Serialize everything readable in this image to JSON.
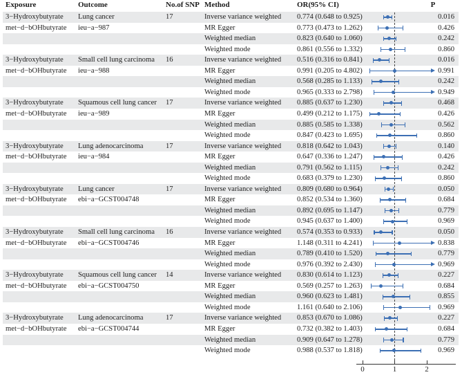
{
  "table": {
    "columns": [
      "Exposure",
      "Outcome",
      "No.of SNP",
      "Method",
      "OR(95% CI)",
      "P"
    ]
  },
  "chart_data": {
    "type": "forest",
    "x_axis": {
      "ticks": [
        "0",
        "1",
        "2"
      ],
      "range": [
        0,
        2.15
      ],
      "reference_line": 1,
      "clip_value": 2.13
    },
    "colors": {
      "marker_blue": "#3c6fb4",
      "row_shade": "#e8e9ea",
      "axis": "#333333",
      "text": "#1c1c1c"
    },
    "groups": [
      {
        "exposure": [
          "3−Hydroxybutyrate",
          "met−d−bOHbutyrate"
        ],
        "outcome": [
          "Lung cancer",
          "ieu−a−987"
        ],
        "snp": "17",
        "rows": [
          {
            "method": "Inverse variance weighted",
            "or_ci": "0.774 (0.648 to 0.925)",
            "or": 0.774,
            "lo": 0.648,
            "hi": 0.925,
            "p": "0.016"
          },
          {
            "method": "MR Egger",
            "or_ci": "0.773 (0.473 to 1.262)",
            "or": 0.773,
            "lo": 0.473,
            "hi": 1.262,
            "p": "0.426"
          },
          {
            "method": "Weighted median",
            "or_ci": "0.823 (0.640 to 1.060)",
            "or": 0.823,
            "lo": 0.64,
            "hi": 1.06,
            "p": "0.242"
          },
          {
            "method": "Weighted mode",
            "or_ci": "0.861 (0.556 to 1.332)",
            "or": 0.861,
            "lo": 0.556,
            "hi": 1.332,
            "p": "0.860"
          }
        ]
      },
      {
        "exposure": [
          "3−Hydroxybutyrate",
          "met−d−bOHbutyrate"
        ],
        "outcome": [
          "Small cell lung carcinoma",
          "ieu−a−988"
        ],
        "snp": "16",
        "rows": [
          {
            "method": "Inverse variance weighted",
            "or_ci": "0.516 (0.316 to 0.841)",
            "or": 0.516,
            "lo": 0.316,
            "hi": 0.841,
            "p": "0.016"
          },
          {
            "method": "MR Egger",
            "or_ci": "0.991 (0.205 to 4.802)",
            "or": 0.991,
            "lo": 0.205,
            "hi": 4.802,
            "p": "0.991"
          },
          {
            "method": "Weighted median",
            "or_ci": "0.568 (0.285 to 1.133)",
            "or": 0.568,
            "lo": 0.285,
            "hi": 1.133,
            "p": "0.242"
          },
          {
            "method": "Weighted mode",
            "or_ci": "0.965 (0.333 to 2.798)",
            "or": 0.965,
            "lo": 0.333,
            "hi": 2.798,
            "p": "0.949"
          }
        ]
      },
      {
        "exposure": [
          "3−Hydroxybutyrate",
          "met−d−bOHbutyrate"
        ],
        "outcome": [
          "Squamous cell lung cancer",
          "ieu−a−989"
        ],
        "snp": "17",
        "rows": [
          {
            "method": "Inverse variance weighted",
            "or_ci": "0.885 (0.637 to 1.230)",
            "or": 0.885,
            "lo": 0.637,
            "hi": 1.23,
            "p": "0.468"
          },
          {
            "method": "MR Egger",
            "or_ci": "0.499 (0.212 to 1.175)",
            "or": 0.499,
            "lo": 0.212,
            "hi": 1.175,
            "p": "0.426"
          },
          {
            "method": "Weighted median",
            "or_ci": "0.885 (0.585 to 1.338)",
            "or": 0.885,
            "lo": 0.585,
            "hi": 1.338,
            "p": "0.562"
          },
          {
            "method": "Weighted mode",
            "or_ci": "0.847 (0.423 to 1.695)",
            "or": 0.847,
            "lo": 0.423,
            "hi": 1.695,
            "p": "0.860"
          }
        ]
      },
      {
        "exposure": [
          "3−Hydroxybutyrate",
          "met−d−bOHbutyrate"
        ],
        "outcome": [
          "Lung adenocarcinoma",
          "ieu−a−984"
        ],
        "snp": "17",
        "rows": [
          {
            "method": "Inverse variance weighted",
            "or_ci": "0.818 (0.642 to 1.043)",
            "or": 0.818,
            "lo": 0.642,
            "hi": 1.043,
            "p": "0.140"
          },
          {
            "method": "MR Egger",
            "or_ci": "0.647 (0.336 to 1.247)",
            "or": 0.647,
            "lo": 0.336,
            "hi": 1.247,
            "p": "0.426"
          },
          {
            "method": "Weighted median",
            "or_ci": "0.791 (0.562 to 1.115)",
            "or": 0.791,
            "lo": 0.562,
            "hi": 1.115,
            "p": "0.242"
          },
          {
            "method": "Weighted mode",
            "or_ci": "0.683 (0.379 to 1.230)",
            "or": 0.683,
            "lo": 0.379,
            "hi": 1.23,
            "p": "0.860"
          }
        ]
      },
      {
        "exposure": [
          "3−Hydroxybutyrate",
          "met−d−bOHbutyrate"
        ],
        "outcome": [
          "Lung cancer",
          "ebi−a−GCST004748"
        ],
        "snp": "17",
        "rows": [
          {
            "method": "Inverse variance weighted",
            "or_ci": "0.809 (0.680 to 0.964)",
            "or": 0.809,
            "lo": 0.68,
            "hi": 0.964,
            "p": "0.050"
          },
          {
            "method": "MR Egger",
            "or_ci": "0.852 (0.534 to 1.360)",
            "or": 0.852,
            "lo": 0.534,
            "hi": 1.36,
            "p": "0.684"
          },
          {
            "method": "Weighted median",
            "or_ci": "0.892 (0.695 to 1.147)",
            "or": 0.892,
            "lo": 0.695,
            "hi": 1.147,
            "p": "0.779"
          },
          {
            "method": "Weighted mode",
            "or_ci": "0.945 (0.637 to 1.400)",
            "or": 0.945,
            "lo": 0.637,
            "hi": 1.4,
            "p": "0.969"
          }
        ]
      },
      {
        "exposure": [
          "3−Hydroxybutyrate",
          "met−d−bOHbutyrate"
        ],
        "outcome": [
          "Small cell lung carcinoma",
          "ebi−a−GCST004746"
        ],
        "snp": "16",
        "rows": [
          {
            "method": "Inverse variance weighted",
            "or_ci": "0.574 (0.353 to 0.933)",
            "or": 0.574,
            "lo": 0.353,
            "hi": 0.933,
            "p": "0.050"
          },
          {
            "method": "MR Egger",
            "or_ci": "1.148 (0.311 to 4.241)",
            "or": 1.148,
            "lo": 0.311,
            "hi": 4.241,
            "p": "0.838"
          },
          {
            "method": "Weighted median",
            "or_ci": "0.789 (0.410 to 1.520)",
            "or": 0.789,
            "lo": 0.41,
            "hi": 1.52,
            "p": "0.779"
          },
          {
            "method": "Weighted mode",
            "or_ci": "0.976 (0.392 to 2.430)",
            "or": 0.976,
            "lo": 0.392,
            "hi": 2.43,
            "p": "0.969"
          }
        ]
      },
      {
        "exposure": [
          "3−Hydroxybutyrate",
          "met−d−bOHbutyrate"
        ],
        "outcome": [
          "Squamous cell lung cancer",
          "ebi−a−GCST004750"
        ],
        "snp": "14",
        "rows": [
          {
            "method": "Inverse variance weighted",
            "or_ci": "0.830 (0.614 to 1.123)",
            "or": 0.83,
            "lo": 0.614,
            "hi": 1.123,
            "p": "0.227"
          },
          {
            "method": "MR Egger",
            "or_ci": "0.569 (0.257 to 1.263)",
            "or": 0.569,
            "lo": 0.257,
            "hi": 1.263,
            "p": "0.684"
          },
          {
            "method": "Weighted median",
            "or_ci": "0.960 (0.623 to 1.481)",
            "or": 0.96,
            "lo": 0.623,
            "hi": 1.481,
            "p": "0.855"
          },
          {
            "method": "Weighted mode",
            "or_ci": "1.161 (0.640 to 2.106)",
            "or": 1.161,
            "lo": 0.64,
            "hi": 2.106,
            "p": "0.969"
          }
        ]
      },
      {
        "exposure": [
          "3−Hydroxybutyrate",
          "met−d−bOHbutyrate"
        ],
        "outcome": [
          "Lung adenocarcinoma",
          "ebi−a−GCST004744"
        ],
        "snp": "17",
        "rows": [
          {
            "method": "Inverse variance weighted",
            "or_ci": "0.853 (0.670 to 1.086)",
            "or": 0.853,
            "lo": 0.67,
            "hi": 1.086,
            "p": "0.227"
          },
          {
            "method": "MR Egger",
            "or_ci": "0.732 (0.382 to 1.403)",
            "or": 0.732,
            "lo": 0.382,
            "hi": 1.403,
            "p": "0.684"
          },
          {
            "method": "Weighted median",
            "or_ci": "0.909 (0.647 to 1.278)",
            "or": 0.909,
            "lo": 0.647,
            "hi": 1.278,
            "p": "0.779"
          },
          {
            "method": "Weighted mode",
            "or_ci": "0.988 (0.537 to 1.818)",
            "or": 0.988,
            "lo": 0.537,
            "hi": 1.818,
            "p": "0.969"
          }
        ]
      }
    ]
  }
}
